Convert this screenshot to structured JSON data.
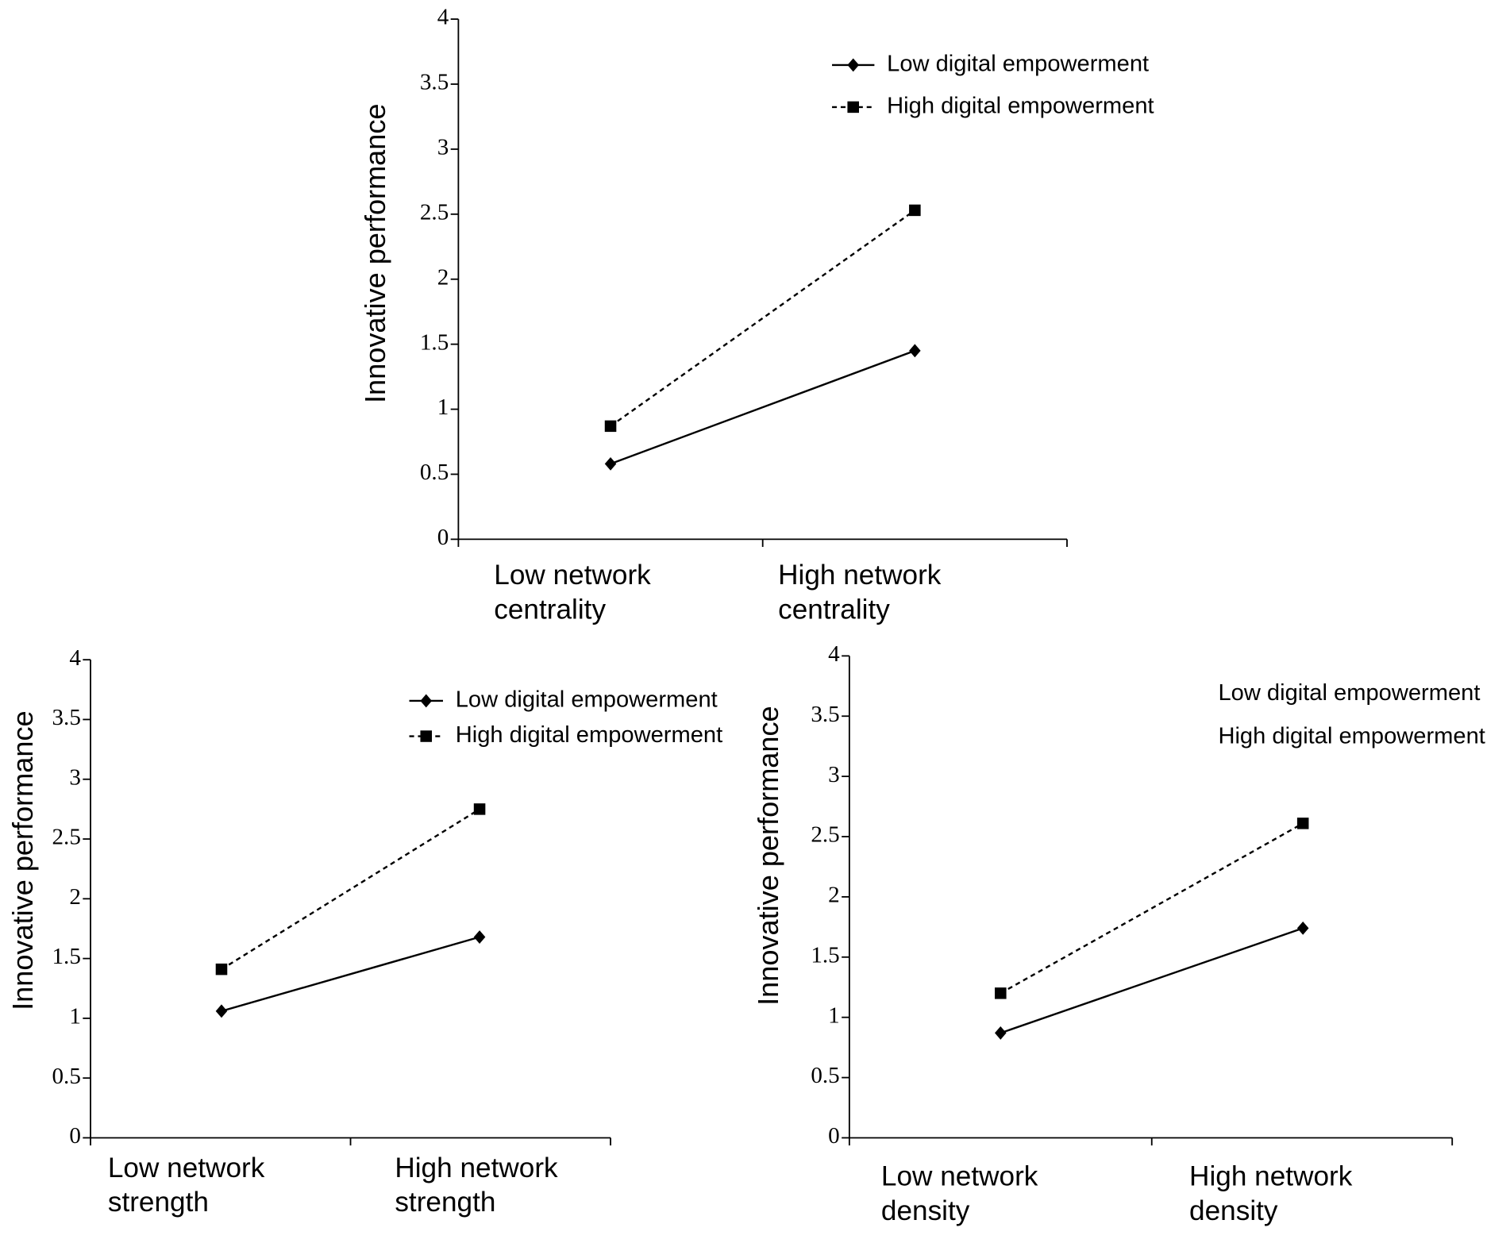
{
  "chart_data": [
    {
      "type": "line",
      "y_label": "Innovative performance",
      "categories": [
        "Low network centrality",
        "High network centrality"
      ],
      "ylim": [
        0,
        4
      ],
      "yticks": [
        0,
        0.5,
        1,
        1.5,
        2,
        2.5,
        3,
        3.5,
        4
      ],
      "legend_markers": true,
      "series": [
        {
          "name": "Low digital empowerment",
          "color": "#000000",
          "marker": "diamond",
          "dashed": false,
          "values": [
            0.58,
            1.45
          ]
        },
        {
          "name": "High digital empowerment",
          "color": "#000000",
          "marker": "square",
          "dashed": true,
          "values": [
            0.87,
            2.53
          ]
        }
      ]
    },
    {
      "type": "line",
      "y_label": "Innovative performance",
      "categories": [
        "Low network strength",
        "High network strength"
      ],
      "ylim": [
        0,
        4
      ],
      "yticks": [
        0,
        0.5,
        1,
        1.5,
        2,
        2.5,
        3,
        3.5,
        4
      ],
      "legend_markers": true,
      "series": [
        {
          "name": "Low digital empowerment",
          "color": "#000000",
          "marker": "diamond",
          "dashed": false,
          "values": [
            1.06,
            1.68
          ]
        },
        {
          "name": "High digital empowerment",
          "color": "#000000",
          "marker": "square",
          "dashed": true,
          "values": [
            1.41,
            2.75
          ]
        }
      ]
    },
    {
      "type": "line",
      "y_label": "Innovative performance",
      "categories": [
        "Low network density",
        "High network density"
      ],
      "ylim": [
        0,
        4
      ],
      "yticks": [
        0,
        0.5,
        1,
        1.5,
        2,
        2.5,
        3,
        3.5,
        4
      ],
      "legend_markers": false,
      "series": [
        {
          "name": "Low digital empowerment",
          "color": "#000000",
          "marker": "diamond",
          "dashed": false,
          "values": [
            0.87,
            1.74
          ]
        },
        {
          "name": "High digital empowerment",
          "color": "#000000",
          "marker": "square",
          "dashed": true,
          "values": [
            1.2,
            2.61
          ]
        }
      ]
    }
  ]
}
